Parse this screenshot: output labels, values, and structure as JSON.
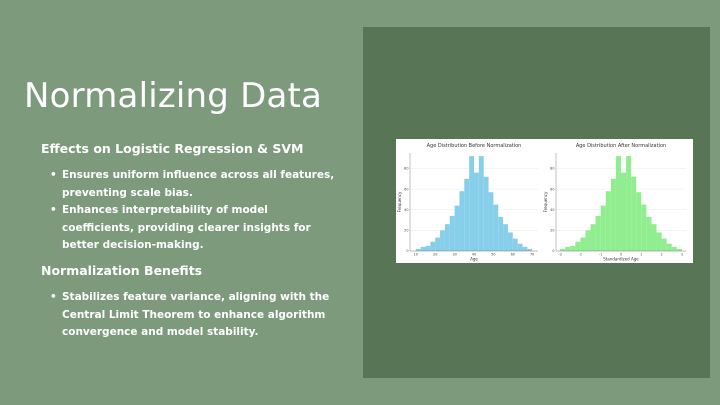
{
  "slide": {
    "title": "Normalizing Data",
    "section1": {
      "heading": "Effects on Logistic Regression & SVM",
      "bullets": [
        "Ensures uniform influence across all features, preventing scale bias.",
        "Enhances interpretability of model coefficients, providing clearer insights for better decision-making."
      ]
    },
    "section2": {
      "heading": "Normalization Benefits",
      "bullets": [
        "Stabilizes feature variance, aligning with the Central Limit Theorem to enhance algorithm convergence and model stability."
      ]
    }
  },
  "colors": {
    "background": "#7d9a7d",
    "panel": "#587556",
    "hist_before": "#87ceeb",
    "hist_after": "#90ee90"
  },
  "chart_data": [
    {
      "type": "bar",
      "title": "Age Distribution Before Normalization",
      "xlabel": "Age",
      "ylabel": "Frequency",
      "xlim": [
        7,
        73
      ],
      "ylim": [
        0,
        95
      ],
      "xticks": [
        10,
        20,
        30,
        40,
        50,
        60,
        70
      ],
      "yticks": [
        0,
        20,
        40,
        60,
        80
      ],
      "bin_edges": [
        10,
        12.5,
        15,
        17.5,
        20,
        22.5,
        25,
        27.5,
        30,
        32.5,
        35,
        37.5,
        40,
        42.5,
        45,
        47.5,
        50,
        52.5,
        55,
        57.5,
        60,
        62.5,
        65,
        67.5,
        70
      ],
      "values": [
        2,
        4,
        5,
        9,
        13,
        20,
        26,
        34,
        44,
        58,
        70,
        92,
        76,
        92,
        72,
        57,
        45,
        33,
        26,
        18,
        12,
        7,
        4,
        2
      ],
      "color": "#87ceeb"
    },
    {
      "type": "bar",
      "title": "Age Distribution After Normalization",
      "xlabel": "Standardized Age",
      "ylabel": "Frequency",
      "xlim": [
        -3.2,
        3.2
      ],
      "ylim": [
        0,
        95
      ],
      "xticks": [
        -3,
        -2,
        -1,
        0,
        1,
        2,
        3
      ],
      "yticks": [
        0,
        20,
        40,
        60,
        80
      ],
      "bin_edges": [
        -3,
        -2.75,
        -2.5,
        -2.25,
        -2,
        -1.75,
        -1.5,
        -1.25,
        -1,
        -0.75,
        -0.5,
        -0.25,
        0,
        0.25,
        0.5,
        0.75,
        1,
        1.25,
        1.5,
        1.75,
        2,
        2.25,
        2.5,
        2.75,
        3
      ],
      "values": [
        2,
        4,
        5,
        9,
        13,
        20,
        26,
        34,
        44,
        58,
        70,
        92,
        76,
        92,
        72,
        57,
        45,
        33,
        26,
        18,
        12,
        7,
        4,
        2
      ],
      "color": "#90ee90"
    }
  ]
}
